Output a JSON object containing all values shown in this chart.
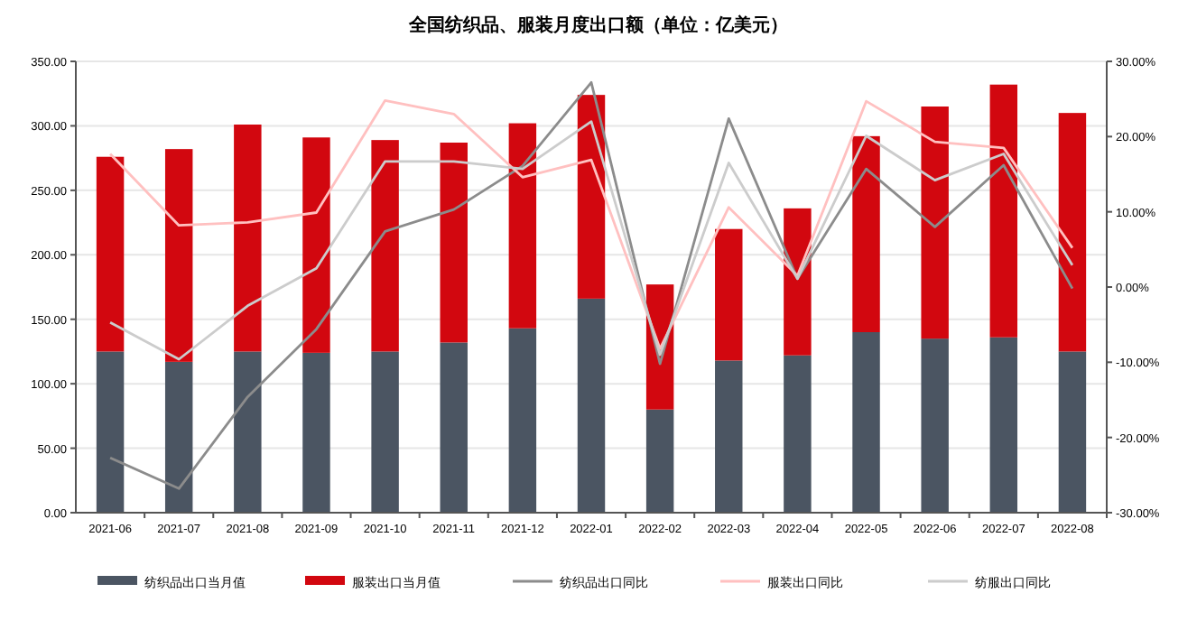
{
  "chart_data": {
    "type": "bar",
    "title": "全国纺织品、服装月度出口额（单位：亿美元）",
    "stacked": true,
    "grid": "y",
    "legend": "bottom",
    "categories": [
      "2021-06",
      "2021-07",
      "2021-08",
      "2021-09",
      "2021-10",
      "2021-11",
      "2021-12",
      "2022-01",
      "2022-02",
      "2022-03",
      "2022-04",
      "2022-05",
      "2022-06",
      "2022-07",
      "2022-08"
    ],
    "series": [
      {
        "name": "纺织品出口当月值",
        "color": "#4b5562",
        "values": [
          125,
          117,
          125,
          124,
          125,
          132,
          143,
          166,
          80,
          118,
          122,
          140,
          135,
          136,
          125
        ]
      },
      {
        "name": "服装出口当月值",
        "color": "#d2070f",
        "values": [
          151,
          165,
          176,
          167,
          164,
          155,
          159,
          158,
          97,
          102,
          114,
          152,
          180,
          196,
          185
        ]
      },
      {
        "name": "纺织品出口同比",
        "type": "line",
        "axis": "y2",
        "color": "#8c8c8c",
        "values": [
          -22.7,
          -26.8,
          -14.6,
          -5.6,
          7.4,
          10.3,
          16.1,
          27.2,
          -10.2,
          22.4,
          1.1,
          15.7,
          8.0,
          16.2,
          -0.2
        ]
      },
      {
        "name": "服装出口同比",
        "type": "line",
        "axis": "y2",
        "color": "#ffc0c0",
        "values": [
          17.7,
          8.2,
          8.6,
          9.9,
          24.8,
          23.0,
          14.6,
          16.9,
          -8.2,
          10.6,
          1.5,
          24.7,
          19.3,
          18.5,
          5.2
        ]
      },
      {
        "name": "纺服出口同比",
        "type": "line",
        "axis": "y2",
        "color": "#cccccc",
        "values": [
          -4.7,
          -9.6,
          -2.5,
          2.5,
          16.7,
          16.7,
          15.7,
          22.0,
          -9.0,
          16.5,
          1.1,
          20.1,
          14.2,
          17.7,
          2.9
        ]
      }
    ],
    "ylim": [
      0,
      350
    ],
    "yticks": [
      {
        "value": 0,
        "label": "0.00"
      },
      {
        "value": 50,
        "label": "50.00"
      },
      {
        "value": 100,
        "label": "100.00"
      },
      {
        "value": 150,
        "label": "150.00"
      },
      {
        "value": 200,
        "label": "200.00"
      },
      {
        "value": 250,
        "label": "250.00"
      },
      {
        "value": 300,
        "label": "300.00"
      },
      {
        "value": 350,
        "label": "350.00"
      }
    ],
    "y2lim": [
      -30,
      30
    ],
    "y2ticks": [
      {
        "value": -30,
        "label": "-30.00%"
      },
      {
        "value": -20,
        "label": "-20.00%"
      },
      {
        "value": -10,
        "label": "-10.00%"
      },
      {
        "value": 0,
        "label": "0.00%"
      },
      {
        "value": 10,
        "label": "10.00%"
      },
      {
        "value": 20,
        "label": "20.00%"
      },
      {
        "value": 30,
        "label": "30.00%"
      }
    ]
  }
}
